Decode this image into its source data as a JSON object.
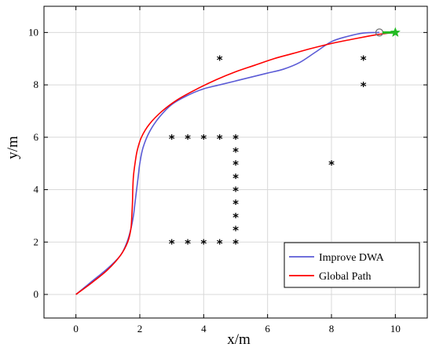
{
  "chart_data": {
    "type": "line",
    "xlabel": "x/m",
    "ylabel": "y/m",
    "xlim": [
      -1,
      11
    ],
    "ylim": [
      -0.9,
      11
    ],
    "xticks": [
      0,
      2,
      4,
      6,
      8,
      10
    ],
    "yticks": [
      0,
      2,
      4,
      6,
      8,
      10
    ],
    "xtick_labels": [
      "0",
      "2",
      "4",
      "6",
      "8",
      "10"
    ],
    "ytick_labels": [
      "0",
      "2",
      "4",
      "6",
      "8",
      "10"
    ],
    "grid": true,
    "legend_position": "bottom-right",
    "series": [
      {
        "name": "Improve DWA",
        "color": "#5b5bd6",
        "x": [
          0,
          0.5,
          1.0,
          1.4,
          1.6,
          1.72,
          1.8,
          1.85,
          1.9,
          1.95,
          2.0,
          2.1,
          2.3,
          2.6,
          3.0,
          3.5,
          4.0,
          4.5,
          5.0,
          5.5,
          6.0,
          6.5,
          7.0,
          7.5,
          8.0,
          8.5,
          9.0,
          9.5
        ],
        "y": [
          0,
          0.5,
          1.0,
          1.5,
          2.0,
          2.5,
          3.0,
          3.5,
          4.0,
          4.5,
          5.0,
          5.6,
          6.2,
          6.75,
          7.25,
          7.6,
          7.85,
          8.0,
          8.15,
          8.3,
          8.45,
          8.6,
          8.85,
          9.25,
          9.65,
          9.85,
          9.98,
          10.0
        ]
      },
      {
        "name": "Global Path",
        "color": "#ff0000",
        "x": [
          0,
          0.5,
          1.0,
          1.4,
          1.62,
          1.72,
          1.75,
          1.77,
          1.78,
          1.8,
          1.85,
          1.92,
          2.05,
          2.3,
          2.7,
          3.2,
          3.8,
          4.4,
          5.0,
          5.6,
          6.2,
          6.8,
          7.4,
          8.0,
          8.6,
          9.2,
          9.6,
          10.0
        ],
        "y": [
          0,
          0.45,
          0.95,
          1.5,
          2.0,
          2.5,
          3.0,
          3.5,
          4.0,
          4.5,
          5.0,
          5.5,
          6.0,
          6.5,
          7.0,
          7.45,
          7.85,
          8.2,
          8.5,
          8.75,
          9.0,
          9.2,
          9.4,
          9.58,
          9.73,
          9.87,
          9.95,
          10.0
        ]
      }
    ],
    "obstacles": {
      "marker": "*",
      "points": [
        [
          3,
          6
        ],
        [
          3.5,
          6
        ],
        [
          4,
          6
        ],
        [
          4.5,
          6
        ],
        [
          5,
          6
        ],
        [
          5,
          5.5
        ],
        [
          5,
          5
        ],
        [
          5,
          4.5
        ],
        [
          5,
          4
        ],
        [
          5,
          3.5
        ],
        [
          5,
          3
        ],
        [
          5,
          2.5
        ],
        [
          5,
          2
        ],
        [
          3,
          2
        ],
        [
          3.5,
          2
        ],
        [
          4,
          2
        ],
        [
          4.5,
          2
        ],
        [
          4.5,
          9
        ],
        [
          9,
          9
        ],
        [
          9,
          8
        ],
        [
          8,
          5
        ]
      ]
    },
    "start_marker": {
      "x": 9.5,
      "y": 10,
      "shape": "circle",
      "color": "#707070"
    },
    "goal_marker": {
      "x": 10,
      "y": 10,
      "shape": "star",
      "color": "#22bb22"
    }
  }
}
